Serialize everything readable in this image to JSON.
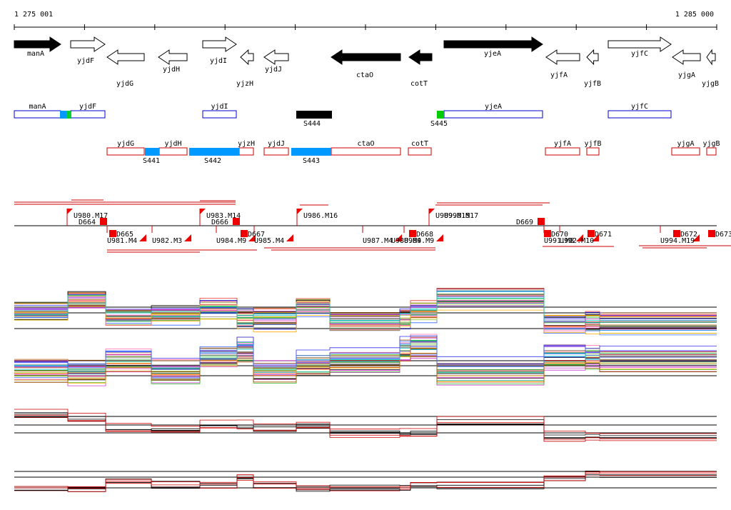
{
  "axis": {
    "start": "1 275 001",
    "end": "1 285 000"
  },
  "genes": [
    "manA",
    "yjdF",
    "yjdI",
    "yjeA",
    "yjfC",
    "yjdG",
    "yjdH",
    "yjzH",
    "yjdJ",
    "ctaO",
    "cotT",
    "yjfA",
    "yjfB",
    "yjgA",
    "yjgB"
  ],
  "boxes": [
    "manA",
    "yjdF",
    "yjdI",
    "yjeA",
    "yjfC",
    "yjdG",
    "yjdH",
    "yjzH",
    "yjdJ",
    "ctaO",
    "cotT",
    "yjfA",
    "yjfB",
    "yjgA",
    "yjgB"
  ],
  "sites": [
    "S444",
    "S445",
    "S441",
    "S442",
    "S443"
  ],
  "units": [
    "U980.M17",
    "D664",
    "U983.M14",
    "D666",
    "U986.M16",
    "U989.M15",
    "U990.M17",
    "D669",
    "U981.M4",
    "D665",
    "U982.M3",
    "U984.M9",
    "D667",
    "U985.M4",
    "U987.M4",
    "U988.M4",
    "U989.M9",
    "D668",
    "U991.M8",
    "U992.M10",
    "D670",
    "D671",
    "U994.M19",
    "D672",
    "D673"
  ]
}
